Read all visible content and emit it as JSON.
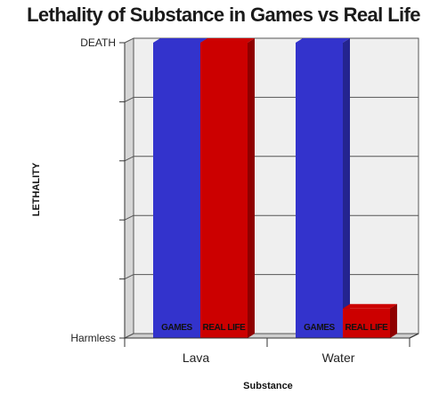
{
  "chart_data": {
    "type": "bar",
    "title": "Lethality of Substance in Games vs Real Life",
    "xlabel": "Substance",
    "ylabel": "LETHALITY",
    "categories": [
      "Lava",
      "Water"
    ],
    "y_tick_labels": [
      "Harmless",
      "",
      "",
      "",
      "",
      "DEATH"
    ],
    "ylim": [
      0,
      1
    ],
    "grid": true,
    "series": [
      {
        "name": "GAMES",
        "color": "#3333cc",
        "values": [
          1.0,
          1.0
        ]
      },
      {
        "name": "REAL LIFE",
        "color": "#cc0000",
        "values": [
          1.0,
          0.1
        ]
      }
    ]
  }
}
